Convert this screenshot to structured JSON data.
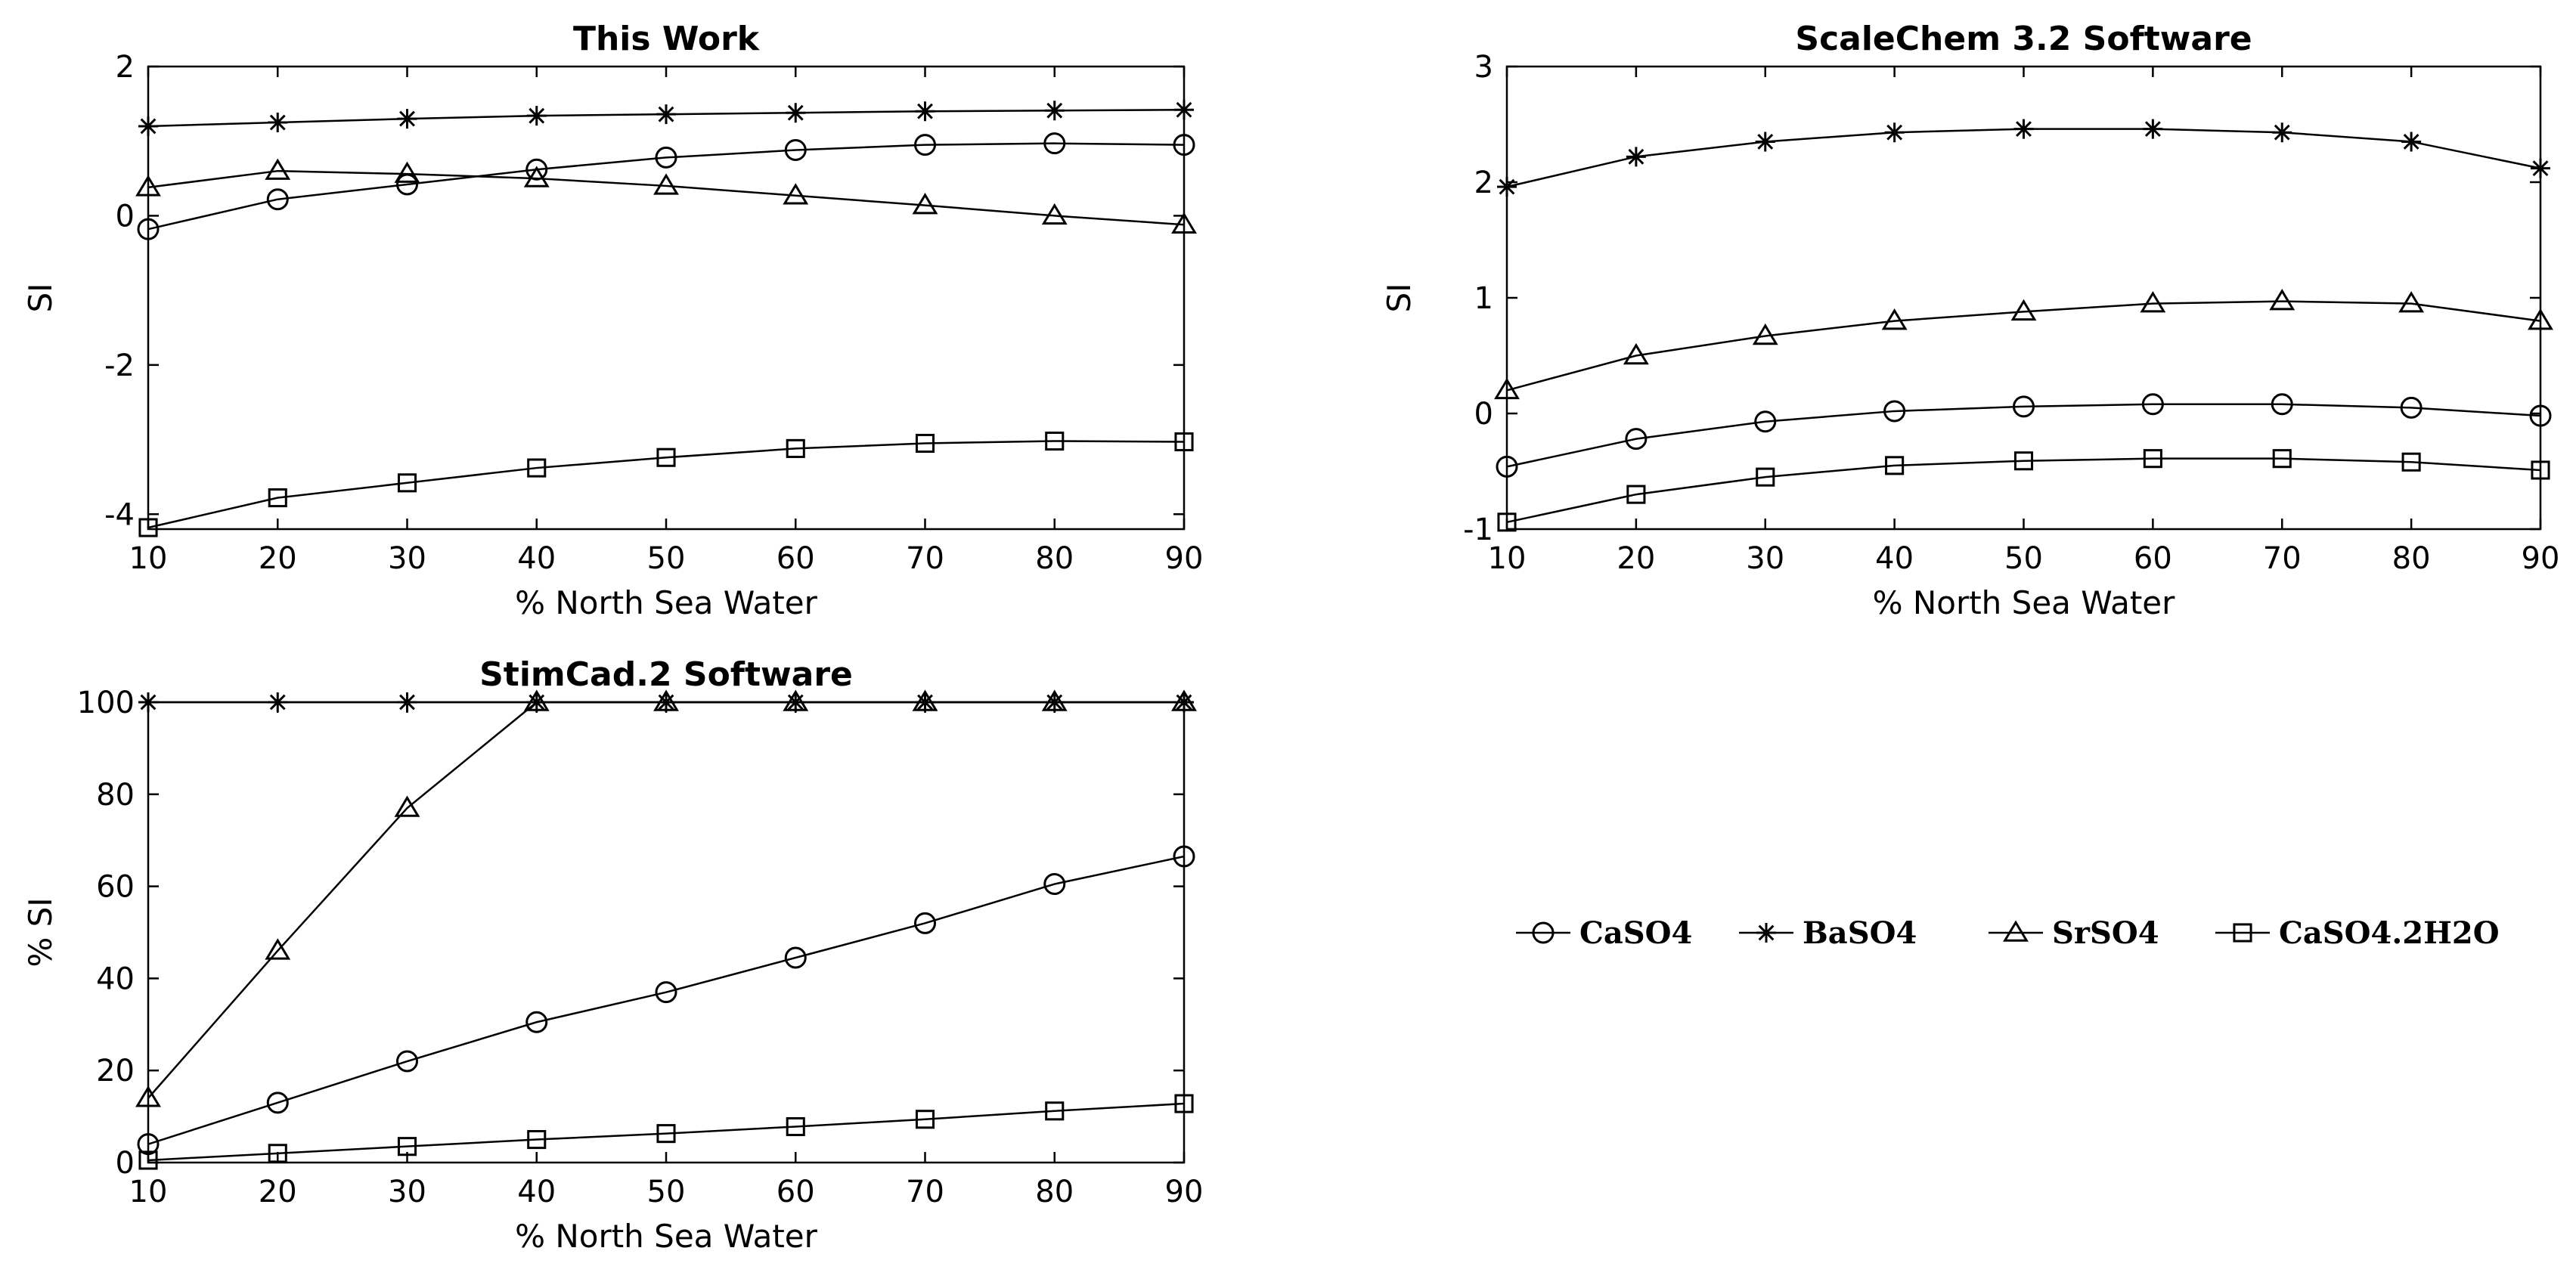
{
  "figure": {
    "xlabel": "% North Sea Water"
  },
  "legend": {
    "items": [
      {
        "label": "CaSO4",
        "marker": "circle"
      },
      {
        "label": "BaSO4",
        "marker": "star"
      },
      {
        "label": "SrSO4",
        "marker": "triangle"
      },
      {
        "label": "CaSO4.2H2O",
        "marker": "square"
      }
    ]
  },
  "chart_data": [
    {
      "type": "line",
      "title": "This Work",
      "xlabel": "% North Sea Water",
      "ylabel": "SI",
      "x": [
        10,
        20,
        30,
        40,
        50,
        60,
        70,
        80,
        90
      ],
      "xlim": [
        10,
        90
      ],
      "ylim": [
        -4.2,
        2
      ],
      "yticks": [
        -4,
        -2,
        0,
        2
      ],
      "xticks": [
        10,
        20,
        30,
        40,
        50,
        60,
        70,
        80,
        90
      ],
      "grid": false,
      "series": [
        {
          "name": "CaSO4",
          "marker": "circle",
          "values": [
            -0.18,
            0.22,
            0.42,
            0.62,
            0.78,
            0.88,
            0.95,
            0.97,
            0.95
          ]
        },
        {
          "name": "BaSO4",
          "marker": "star",
          "values": [
            1.2,
            1.25,
            1.3,
            1.34,
            1.36,
            1.38,
            1.4,
            1.41,
            1.42
          ]
        },
        {
          "name": "SrSO4",
          "marker": "triangle",
          "values": [
            0.38,
            0.6,
            0.56,
            0.5,
            0.4,
            0.27,
            0.14,
            0.0,
            -0.12
          ]
        },
        {
          "name": "CaSO4.2H2O",
          "marker": "square",
          "values": [
            -4.18,
            -3.78,
            -3.58,
            -3.38,
            -3.24,
            -3.12,
            -3.05,
            -3.02,
            -3.03
          ]
        }
      ]
    },
    {
      "type": "line",
      "title": "ScaleChem 3.2 Software",
      "xlabel": "% North Sea Water",
      "ylabel": "SI",
      "x": [
        10,
        20,
        30,
        40,
        50,
        60,
        70,
        80,
        90
      ],
      "xlim": [
        10,
        90
      ],
      "ylim": [
        -1,
        3
      ],
      "yticks": [
        -1,
        0,
        1,
        2,
        3
      ],
      "xticks": [
        10,
        20,
        30,
        40,
        50,
        60,
        70,
        80,
        90
      ],
      "grid": false,
      "series": [
        {
          "name": "CaSO4",
          "marker": "circle",
          "values": [
            -0.46,
            -0.22,
            -0.07,
            0.02,
            0.06,
            0.08,
            0.08,
            0.05,
            -0.02
          ]
        },
        {
          "name": "BaSO4",
          "marker": "star",
          "values": [
            1.96,
            2.22,
            2.35,
            2.43,
            2.46,
            2.46,
            2.43,
            2.35,
            2.12
          ]
        },
        {
          "name": "SrSO4",
          "marker": "triangle",
          "values": [
            0.2,
            0.5,
            0.67,
            0.8,
            0.88,
            0.95,
            0.97,
            0.95,
            0.8
          ]
        },
        {
          "name": "CaSO4.2H2O",
          "marker": "square",
          "values": [
            -0.94,
            -0.7,
            -0.55,
            -0.45,
            -0.41,
            -0.39,
            -0.39,
            -0.42,
            -0.49
          ]
        }
      ]
    },
    {
      "type": "line",
      "title": "StimCad.2 Software",
      "xlabel": "% North Sea Water",
      "ylabel": "% SI",
      "x": [
        10,
        20,
        30,
        40,
        50,
        60,
        70,
        80,
        90
      ],
      "xlim": [
        10,
        90
      ],
      "ylim": [
        0,
        100
      ],
      "yticks": [
        0,
        20,
        40,
        60,
        80,
        100
      ],
      "xticks": [
        10,
        20,
        30,
        40,
        50,
        60,
        70,
        80,
        90
      ],
      "grid": false,
      "series": [
        {
          "name": "CaSO4",
          "marker": "circle",
          "values": [
            4,
            13,
            22,
            30.5,
            37,
            44.5,
            52,
            60.5,
            66.5
          ]
        },
        {
          "name": "BaSO4",
          "marker": "star",
          "values": [
            100,
            100,
            100,
            100,
            100,
            100,
            100,
            100,
            100
          ]
        },
        {
          "name": "SrSO4",
          "marker": "triangle",
          "values": [
            14,
            46,
            77,
            100,
            100,
            100,
            100,
            100,
            100
          ]
        },
        {
          "name": "CaSO4.2H2O",
          "marker": "square",
          "values": [
            0.5,
            2,
            3.5,
            5,
            6.3,
            7.8,
            9.4,
            11.2,
            12.8
          ]
        }
      ]
    }
  ]
}
